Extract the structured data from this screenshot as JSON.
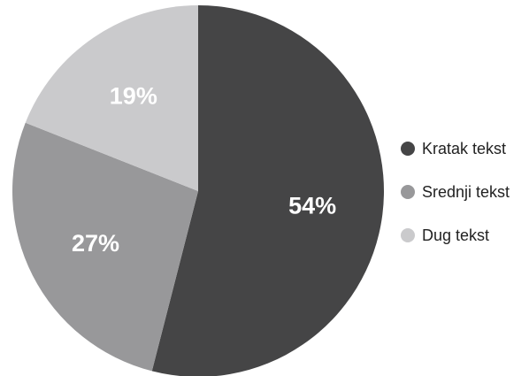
{
  "chart_data": {
    "type": "pie",
    "categories": [
      "Kratak tekst",
      "Srednji tekst",
      "Dug tekst"
    ],
    "values": [
      54,
      27,
      19
    ],
    "labels": [
      "54%",
      "27%",
      "19%"
    ],
    "colors": [
      "#454546",
      "#98989a",
      "#cacacc"
    ],
    "title": "",
    "legend": {
      "position": "right",
      "items": [
        "Kratak tekst",
        "Srednji tekst",
        "Dug tekst"
      ]
    },
    "start_angle": "12 o'clock",
    "direction": "clockwise"
  }
}
